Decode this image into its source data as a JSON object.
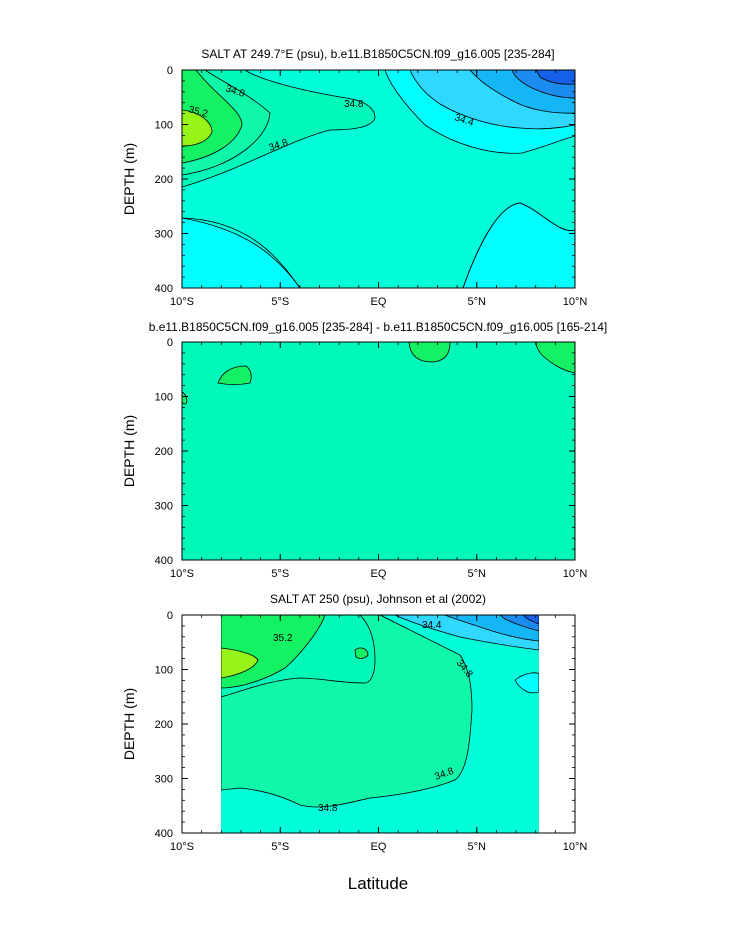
{
  "colors": {
    "c_low1": "#1560e8",
    "c_low2": "#1a8cf0",
    "c_low3": "#14b6f6",
    "c_low4": "#2fd8fc",
    "c_cyan": "#00ffff",
    "c_aqua": "#00ffd8",
    "c_teal": "#00f9b8",
    "c_mint": "#0ff7a8",
    "c_green": "#14f264",
    "c_lime": "#96f418",
    "line": "#000000"
  },
  "panels": [
    {
      "title": "SALT AT 249.7°E (psu), b.e11.B1850C5CN.f09_g16.005 [235-284]",
      "ylabel": "DEPTH (m)"
    },
    {
      "title": "b.e11.B1850C5CN.f09_g16.005 [235-284] - b.e11.B1850C5CN.f09_g16.005 [165-214]",
      "ylabel": "DEPTH (m)"
    },
    {
      "title": "SALT AT 250 (psu), Johnson et al (2002)",
      "ylabel": "DEPTH (m)"
    }
  ],
  "xlabel": "Latitude",
  "chart_data": [
    {
      "type": "heatmap",
      "title": "SALT AT 249.7°E (psu), b.e11.B1850C5CN.f09_g16.005 [235-284]",
      "xlabel": "",
      "ylabel": "DEPTH (m)",
      "xlim": [
        -10,
        10
      ],
      "ylim": [
        400,
        0
      ],
      "x_ticks": [
        "10°S",
        "5°S",
        "EQ",
        "5°N",
        "10°N"
      ],
      "y_ticks": [
        "0",
        "100",
        "200",
        "300",
        "400"
      ],
      "contour_labels": [
        "34.8",
        "34.8",
        "35.2",
        "34.8",
        "34.4"
      ]
    },
    {
      "type": "heatmap",
      "title": "b.e11.B1850C5CN.f09_g16.005 [235-284] - b.e11.B1850C5CN.f09_g16.005 [165-214]",
      "xlabel": "",
      "ylabel": "DEPTH (m)",
      "xlim": [
        -10,
        10
      ],
      "ylim": [
        400,
        0
      ],
      "x_ticks": [
        "10°S",
        "5°S",
        "EQ",
        "5°N",
        "10°N"
      ],
      "y_ticks": [
        "0",
        "100",
        "200",
        "300",
        "400"
      ],
      "contour_labels": []
    },
    {
      "type": "heatmap",
      "title": "SALT AT 250 (psu), Johnson et al (2002)",
      "xlabel": "Latitude",
      "ylabel": "DEPTH (m)",
      "xlim": [
        -10,
        10
      ],
      "ylim": [
        400,
        0
      ],
      "data_xrange": [
        -8,
        8.2
      ],
      "x_ticks": [
        "10°S",
        "5°S",
        "EQ",
        "5°N",
        "10°N"
      ],
      "y_ticks": [
        "0",
        "100",
        "200",
        "300",
        "400"
      ],
      "contour_labels": [
        "35.2",
        "34.4",
        "34.8",
        "34.8",
        "34.8"
      ]
    }
  ]
}
